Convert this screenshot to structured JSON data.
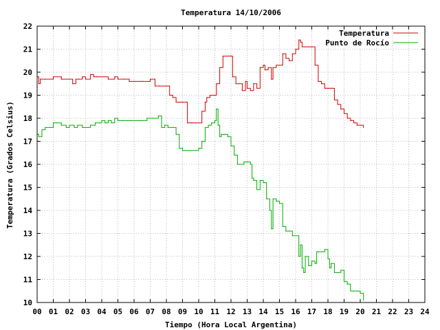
{
  "chart_data": {
    "type": "line",
    "title": "Temperatura 14/10/2006",
    "xlabel": "Tiempo (Hora Local Argentina)",
    "ylabel": "Temperatura (Grados Celsius)",
    "xlim": [
      0,
      24
    ],
    "ylim": [
      10,
      22
    ],
    "x_tick_labels": [
      "00",
      "01",
      "02",
      "03",
      "04",
      "05",
      "06",
      "07",
      "08",
      "09",
      "10",
      "11",
      "12",
      "13",
      "14",
      "15",
      "16",
      "17",
      "18",
      "19",
      "20",
      "21",
      "22",
      "23",
      "24"
    ],
    "y_tick_labels": [
      "10",
      "11",
      "12",
      "13",
      "14",
      "15",
      "16",
      "17",
      "18",
      "19",
      "20",
      "21",
      "22"
    ],
    "grid": true,
    "legend_position": "top-right",
    "series": [
      {
        "name": "Temperatura",
        "color": "#cc0000",
        "x": [
          0.0,
          0.1,
          0.2,
          0.5,
          1.0,
          1.5,
          2.0,
          2.2,
          2.4,
          2.6,
          2.8,
          3.0,
          3.3,
          3.5,
          3.7,
          4.0,
          4.4,
          4.8,
          5.0,
          5.4,
          5.7,
          6.0,
          6.5,
          7.0,
          7.3,
          7.6,
          8.0,
          8.2,
          8.4,
          8.6,
          8.8,
          9.0,
          9.3,
          9.5,
          9.6,
          9.8,
          10.0,
          10.2,
          10.4,
          10.5,
          10.7,
          10.9,
          11.1,
          11.3,
          11.5,
          11.7,
          12.0,
          12.1,
          12.3,
          12.5,
          12.7,
          12.9,
          13.0,
          13.2,
          13.4,
          13.6,
          13.8,
          14.0,
          14.1,
          14.3,
          14.5,
          14.6,
          14.8,
          15.0,
          15.2,
          15.4,
          15.6,
          15.8,
          16.0,
          16.2,
          16.3,
          16.4,
          16.6,
          16.8,
          17.0,
          17.2,
          17.4,
          17.6,
          17.8,
          18.0,
          18.2,
          18.4,
          18.6,
          18.8,
          19.0,
          19.2,
          19.4,
          19.6,
          19.8,
          20.0,
          20.2
        ],
        "values": [
          19.8,
          19.5,
          19.7,
          19.7,
          19.8,
          19.7,
          19.7,
          19.5,
          19.7,
          19.7,
          19.8,
          19.7,
          19.9,
          19.8,
          19.8,
          19.8,
          19.7,
          19.8,
          19.7,
          19.7,
          19.6,
          19.6,
          19.6,
          19.7,
          19.4,
          19.4,
          19.4,
          19.0,
          18.9,
          18.7,
          18.7,
          18.7,
          17.8,
          17.8,
          17.8,
          17.8,
          17.8,
          18.3,
          18.7,
          18.9,
          19.0,
          19.0,
          19.5,
          20.2,
          20.7,
          20.7,
          20.7,
          19.8,
          19.5,
          19.5,
          19.2,
          19.6,
          19.3,
          19.2,
          19.5,
          19.3,
          20.2,
          20.3,
          20.1,
          20.2,
          19.7,
          20.2,
          20.3,
          20.3,
          20.8,
          20.6,
          20.5,
          20.8,
          21.0,
          21.4,
          21.3,
          21.1,
          21.1,
          21.1,
          21.1,
          20.3,
          19.6,
          19.5,
          19.3,
          19.3,
          19.3,
          18.8,
          18.6,
          18.4,
          18.2,
          18.0,
          17.9,
          17.8,
          17.7,
          17.7,
          17.6
        ]
      },
      {
        "name": "Punto de Rocío",
        "color": "#00aa00",
        "x": [
          0.0,
          0.1,
          0.3,
          0.5,
          0.8,
          1.0,
          1.2,
          1.5,
          1.8,
          2.0,
          2.3,
          2.5,
          2.8,
          3.0,
          3.3,
          3.6,
          3.9,
          4.0,
          4.2,
          4.4,
          4.6,
          4.8,
          5.0,
          5.3,
          5.6,
          5.8,
          6.0,
          6.4,
          6.8,
          7.2,
          7.5,
          7.7,
          7.9,
          8.1,
          8.4,
          8.6,
          8.8,
          9.0,
          9.2,
          9.4,
          9.5,
          9.8,
          10.0,
          10.2,
          10.4,
          10.6,
          10.8,
          11.0,
          11.1,
          11.2,
          11.3,
          11.4,
          11.6,
          11.8,
          12.0,
          12.2,
          12.4,
          12.6,
          12.8,
          13.0,
          13.2,
          13.3,
          13.4,
          13.6,
          13.8,
          14.0,
          14.2,
          14.4,
          14.5,
          14.6,
          14.8,
          15.0,
          15.2,
          15.4,
          15.6,
          15.8,
          16.0,
          16.2,
          16.3,
          16.4,
          16.5,
          16.6,
          16.8,
          17.0,
          17.2,
          17.3,
          17.4,
          17.6,
          17.8,
          18.0,
          18.1,
          18.2,
          18.4,
          18.6,
          18.8,
          19.0,
          19.2,
          19.4,
          19.6,
          19.8,
          20.0,
          20.2
        ],
        "values": [
          17.3,
          17.2,
          17.5,
          17.6,
          17.6,
          17.8,
          17.8,
          17.7,
          17.6,
          17.7,
          17.6,
          17.7,
          17.6,
          17.6,
          17.7,
          17.8,
          17.8,
          17.9,
          17.8,
          17.9,
          17.8,
          18.0,
          17.9,
          17.9,
          17.9,
          17.9,
          17.9,
          17.9,
          18.0,
          18.0,
          18.1,
          17.6,
          17.7,
          17.6,
          17.6,
          17.3,
          16.7,
          16.6,
          16.6,
          16.6,
          16.6,
          16.6,
          16.7,
          17.0,
          17.6,
          17.7,
          17.8,
          17.9,
          18.4,
          17.7,
          17.2,
          17.3,
          17.3,
          17.2,
          16.8,
          16.4,
          16.0,
          16.0,
          16.1,
          16.1,
          16.0,
          15.4,
          15.3,
          14.9,
          15.3,
          15.2,
          14.5,
          14.0,
          13.2,
          14.5,
          14.4,
          14.3,
          13.3,
          13.1,
          13.1,
          12.9,
          12.9,
          12.0,
          12.5,
          11.5,
          11.3,
          12.0,
          11.6,
          11.8,
          11.7,
          12.2,
          12.2,
          12.2,
          12.3,
          11.9,
          11.5,
          11.7,
          11.3,
          11.3,
          11.4,
          10.9,
          10.8,
          10.5,
          10.5,
          10.5,
          10.4,
          10.1
        ]
      }
    ]
  }
}
